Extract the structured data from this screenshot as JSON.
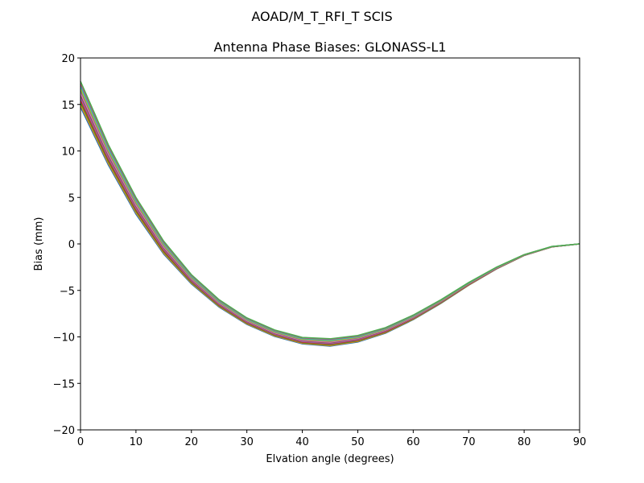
{
  "suptitle": "AOAD/M_T_RFI_T  SCIS",
  "chart_data": {
    "type": "line",
    "title": "Antenna Phase Biases: GLONASS-L1",
    "xlabel": "Elvation angle (degrees)",
    "ylabel": "Bias (mm)",
    "xlim": [
      0,
      90
    ],
    "ylim": [
      -20,
      20
    ],
    "xticks": [
      0,
      10,
      20,
      30,
      40,
      50,
      60,
      70,
      80,
      90
    ],
    "yticks": [
      -20,
      -15,
      -10,
      -5,
      0,
      5,
      10,
      15,
      20
    ],
    "grid": false,
    "legend": "none",
    "x": [
      0,
      5,
      10,
      15,
      20,
      25,
      30,
      35,
      40,
      45,
      50,
      55,
      60,
      65,
      70,
      75,
      80,
      85,
      90
    ],
    "center_values": [
      16.1,
      9.6,
      4.1,
      -0.4,
      -3.8,
      -6.4,
      -8.3,
      -9.6,
      -10.4,
      -10.6,
      -10.2,
      -9.3,
      -7.9,
      -6.2,
      -4.3,
      -2.6,
      -1.2,
      -0.3,
      0.0
    ],
    "band_halfwidth": [
      1.4,
      1.1,
      0.9,
      0.7,
      0.5,
      0.4,
      0.35,
      0.35,
      0.35,
      0.4,
      0.35,
      0.3,
      0.25,
      0.2,
      0.15,
      0.1,
      0.05,
      0.03,
      0.0
    ],
    "series_count": 12,
    "series_colors": [
      "#1f77b4",
      "#ff7f0e",
      "#2ca02c",
      "#d62728",
      "#9467bd",
      "#8c564b",
      "#e377c2",
      "#7f7f7f",
      "#bcbd22",
      "#17becf",
      "#c0507a",
      "#4caf50"
    ],
    "note": "Many overlapping per-satellite curves forming a narrow band; spread is widest at low elevation and converges to 0 at 90 degrees"
  }
}
